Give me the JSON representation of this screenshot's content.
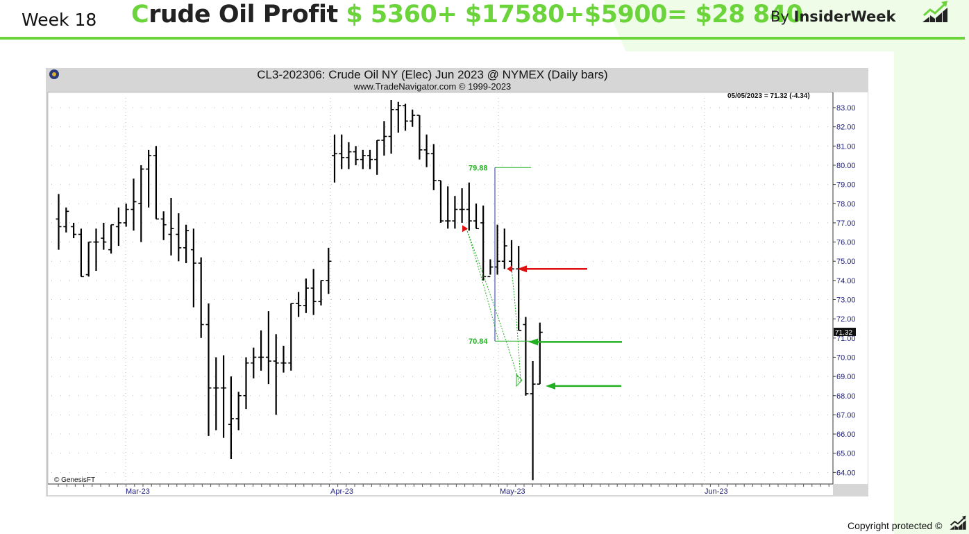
{
  "header": {
    "week_label": "Week 18",
    "title_first_letter": "C",
    "title_rest": "rude Oil Profit ",
    "title_amounts": "$ 5360+ $17580+$5900= $28 840",
    "by_prefix": "By ",
    "by_name": "InsiderWeek",
    "logo_icon": "chart-growth-icon"
  },
  "footer": {
    "copyright": "Copyright protected ©",
    "logo_icon": "chart-growth-icon"
  },
  "colors": {
    "brand_green": "#6ad43a",
    "text_dark": "#222222",
    "axis_blue": "#1a1a7a",
    "level_green": "#22b022",
    "arrow_red": "#e01010"
  },
  "chart_data": {
    "type": "ohlc",
    "title": "CL3-202306:  Crude Oil NY (Elec) Jun 2023 @ NYMEX  (Daily bars)",
    "subtitle": "www.TradeNavigator.com © 1999-2023",
    "last_info": "05/05/2023 = 71.32 (-4.34)",
    "last_price_tag": "71.32",
    "credit": "© GenesisFT",
    "ylim": [
      63.5,
      83.7
    ],
    "y_ticks": [
      "83.00",
      "82.00",
      "81.00",
      "80.00",
      "79.00",
      "78.00",
      "77.00",
      "76.00",
      "75.00",
      "74.00",
      "73.00",
      "72.00",
      "71.00",
      "70.00",
      "69.00",
      "68.00",
      "67.00",
      "66.00",
      "65.00",
      "64.00"
    ],
    "x_labels": [
      "Mar-23",
      "Apr-23",
      "May-23",
      "Jun-23"
    ],
    "levels": [
      {
        "label": "79.88",
        "value": 79.88
      },
      {
        "label": "70.84",
        "value": 70.84
      }
    ],
    "bars": [
      [
        77.2,
        78.5,
        75.6,
        76.8
      ],
      [
        76.8,
        77.8,
        76.5,
        77.6
      ],
      [
        76.8,
        77.0,
        76.2,
        76.4
      ],
      [
        76.4,
        76.7,
        74.2,
        74.2
      ],
      [
        74.3,
        76.0,
        74.2,
        76.0
      ],
      [
        76.0,
        76.7,
        74.5,
        76.0
      ],
      [
        76.2,
        77.0,
        75.6,
        76.0
      ],
      [
        75.6,
        76.9,
        75.4,
        76.9
      ],
      [
        76.8,
        77.8,
        75.8,
        77.0
      ],
      [
        77.0,
        78.0,
        76.8,
        77.7
      ],
      [
        77.7,
        79.3,
        76.6,
        78.1
      ],
      [
        78.0,
        80.0,
        76.0,
        79.8
      ],
      [
        79.8,
        80.8,
        77.8,
        80.5
      ],
      [
        80.5,
        81.0,
        77.2,
        77.2
      ],
      [
        77.2,
        77.6,
        76.1,
        76.9
      ],
      [
        76.4,
        78.3,
        75.3,
        76.7
      ],
      [
        76.4,
        77.5,
        75.0,
        75.7
      ],
      [
        75.7,
        76.9,
        74.9,
        76.6
      ],
      [
        75.6,
        76.7,
        72.6,
        74.9
      ],
      [
        74.9,
        75.2,
        71.0,
        71.7
      ],
      [
        71.7,
        72.8,
        65.9,
        68.4
      ],
      [
        68.4,
        70.0,
        66.2,
        68.4
      ],
      [
        68.4,
        70.1,
        65.8,
        68.4
      ],
      [
        66.5,
        69.0,
        64.7,
        66.8
      ],
      [
        66.8,
        68.2,
        66.2,
        68.0
      ],
      [
        68.0,
        70.0,
        67.3,
        69.7
      ],
      [
        69.7,
        70.5,
        68.9,
        70.0
      ],
      [
        70.0,
        71.4,
        69.3,
        70.0
      ],
      [
        70.0,
        72.4,
        68.6,
        69.8
      ],
      [
        69.8,
        71.2,
        67.0,
        69.7
      ],
      [
        69.7,
        70.6,
        69.2,
        69.7
      ],
      [
        69.7,
        72.8,
        69.3,
        72.8
      ],
      [
        72.8,
        73.4,
        72.1,
        72.7
      ],
      [
        72.7,
        74.1,
        72.3,
        73.6
      ],
      [
        73.6,
        74.6,
        72.2,
        72.9
      ],
      [
        72.9,
        74.0,
        72.7,
        74.0
      ],
      [
        74.0,
        75.7,
        73.3,
        75.0
      ],
      [
        80.5,
        81.6,
        79.1,
        80.6
      ],
      [
        80.6,
        81.6,
        79.8,
        80.4
      ],
      [
        80.4,
        81.2,
        79.8,
        80.7
      ],
      [
        80.7,
        81.0,
        80.0,
        80.3
      ],
      [
        80.3,
        80.8,
        79.8,
        80.5
      ],
      [
        80.5,
        80.8,
        79.8,
        80.3
      ],
      [
        80.3,
        81.3,
        79.5,
        81.3
      ],
      [
        81.3,
        82.3,
        80.5,
        81.5
      ],
      [
        81.5,
        83.4,
        80.6,
        82.9
      ],
      [
        82.9,
        83.3,
        81.7,
        83.1
      ],
      [
        83.1,
        83.2,
        81.8,
        82.3
      ],
      [
        82.3,
        82.9,
        82.0,
        82.6
      ],
      [
        82.6,
        82.6,
        80.3,
        80.8
      ],
      [
        80.8,
        81.6,
        79.9,
        80.6
      ],
      [
        80.6,
        81.1,
        78.7,
        79.2
      ],
      [
        79.2,
        79.2,
        77.0,
        77.1
      ],
      [
        77.1,
        78.9,
        76.7,
        77.1
      ],
      [
        77.1,
        78.4,
        76.7,
        77.7
      ],
      [
        77.7,
        78.8,
        77.0,
        77.7
      ],
      [
        77.7,
        79.1,
        76.6,
        77.1
      ],
      [
        77.1,
        78.0,
        76.7,
        76.7
      ],
      [
        77.0,
        77.9,
        74.0,
        74.2
      ],
      [
        74.2,
        75.1,
        74.3,
        74.7
      ],
      [
        74.7,
        76.9,
        74.3,
        75.0
      ],
      [
        75.0,
        76.7,
        74.6,
        75.8
      ],
      [
        75.0,
        76.1,
        74.6,
        74.6
      ],
      [
        74.6,
        75.8,
        71.4,
        71.4
      ],
      [
        71.7,
        72.1,
        68.0,
        68.1
      ],
      [
        68.1,
        69.8,
        63.6,
        68.6
      ],
      [
        68.6,
        71.8,
        68.6,
        71.3
      ]
    ],
    "annotations": [
      {
        "type": "red-marker",
        "value": 76.7
      },
      {
        "type": "red-marker",
        "value": 74.6
      },
      {
        "type": "red-arrow",
        "value": 74.6
      },
      {
        "type": "green-arrow",
        "value": 70.8
      },
      {
        "type": "green-arrow",
        "value": 68.5
      }
    ]
  }
}
